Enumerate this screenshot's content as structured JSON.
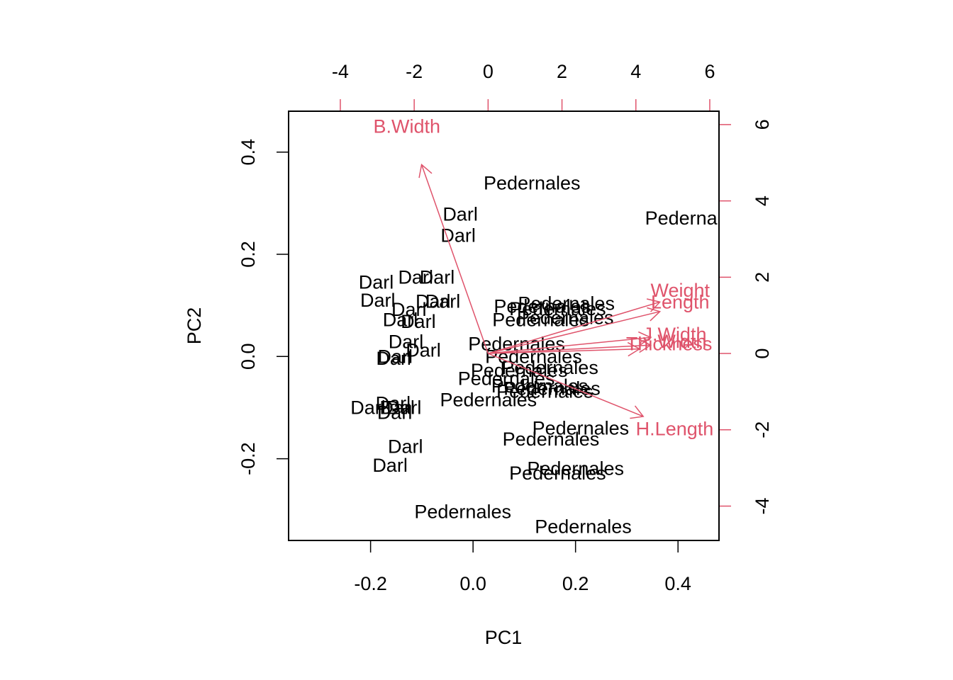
{
  "chart_data": {
    "type": "scatter",
    "subtype": "pca-biplot",
    "title": "",
    "xlabel": "PC1",
    "ylabel": "PC2",
    "xlim": [
      -0.36,
      0.48
    ],
    "ylim": [
      -0.36,
      0.48
    ],
    "xticks": [
      "-0.2",
      "0.0",
      "0.2",
      "0.4"
    ],
    "yticks": [
      "-0.2",
      "0.0",
      "0.2",
      "0.4"
    ],
    "xtick_values": [
      -0.2,
      0.0,
      0.2,
      0.4
    ],
    "ytick_values": [
      -0.2,
      0.0,
      0.2,
      0.4
    ],
    "top_axis": {
      "ticks": [
        "-4",
        "-2",
        "0",
        "2",
        "4",
        "6"
      ],
      "tick_values": [
        -4,
        -2,
        0,
        2,
        4,
        6
      ],
      "lim": [
        -5.4,
        6.25
      ]
    },
    "right_axis": {
      "ticks": [
        "-4",
        "-2",
        "0",
        "2",
        "4",
        "6"
      ],
      "tick_values": [
        -4,
        -2,
        0,
        2,
        4,
        6
      ],
      "lim": [
        -4.9,
        6.35
      ]
    },
    "grid": false,
    "colors": {
      "points": "#000000",
      "arrows": "#DF536B",
      "frame": "#000000"
    },
    "observations": [
      {
        "label": "Pedernales",
        "x": 0.115,
        "y": 0.339
      },
      {
        "label": "Darl",
        "x": -0.025,
        "y": 0.278
      },
      {
        "label": "Darl",
        "x": -0.029,
        "y": 0.237
      },
      {
        "label": "Pedernales",
        "x": 0.43,
        "y": 0.271
      },
      {
        "label": "Darl",
        "x": -0.112,
        "y": 0.155
      },
      {
        "label": "Darl",
        "x": -0.07,
        "y": 0.155
      },
      {
        "label": "Darl",
        "x": -0.189,
        "y": 0.145
      },
      {
        "label": "Darl",
        "x": -0.186,
        "y": 0.11
      },
      {
        "label": "Darl",
        "x": -0.078,
        "y": 0.108
      },
      {
        "label": "Darl",
        "x": -0.059,
        "y": 0.108
      },
      {
        "label": "Pedernales",
        "x": 0.182,
        "y": 0.104
      },
      {
        "label": "Pedernales",
        "x": 0.135,
        "y": 0.098
      },
      {
        "label": "Pedernales",
        "x": 0.165,
        "y": 0.093
      },
      {
        "label": "Darl",
        "x": -0.125,
        "y": 0.092
      },
      {
        "label": "Pedernales",
        "x": 0.18,
        "y": 0.076
      },
      {
        "label": "Pedernales",
        "x": 0.132,
        "y": 0.072
      },
      {
        "label": "Darl",
        "x": -0.142,
        "y": 0.072
      },
      {
        "label": "Darl",
        "x": -0.107,
        "y": 0.068
      },
      {
        "label": "Darl",
        "x": -0.131,
        "y": 0.029
      },
      {
        "label": "Pedernales",
        "x": 0.085,
        "y": 0.025
      },
      {
        "label": "Darl",
        "x": -0.097,
        "y": 0.012
      },
      {
        "label": "Darl",
        "x": -0.152,
        "y": 0.0
      },
      {
        "label": "Darl",
        "x": -0.155,
        "y": -0.004
      },
      {
        "label": "Pedernales",
        "x": 0.118,
        "y": 0.0
      },
      {
        "label": "Pedernales",
        "x": 0.15,
        "y": -0.022
      },
      {
        "label": "Pedernales",
        "x": 0.09,
        "y": -0.027
      },
      {
        "label": "Pedernales",
        "x": 0.065,
        "y": -0.043
      },
      {
        "label": "Pedernales",
        "x": 0.13,
        "y": -0.058
      },
      {
        "label": "Pedernales",
        "x": 0.154,
        "y": -0.063
      },
      {
        "label": "Pedernales",
        "x": 0.14,
        "y": -0.068
      },
      {
        "label": "Pedernales",
        "x": 0.03,
        "y": -0.085
      },
      {
        "label": "Darl",
        "x": -0.156,
        "y": -0.092
      },
      {
        "label": "Darl",
        "x": -0.148,
        "y": -0.1
      },
      {
        "label": "Darl",
        "x": -0.135,
        "y": -0.1
      },
      {
        "label": "Darl",
        "x": -0.205,
        "y": -0.1
      },
      {
        "label": "Darl",
        "x": -0.153,
        "y": -0.11
      },
      {
        "label": "Pedernales",
        "x": 0.21,
        "y": -0.14
      },
      {
        "label": "Pedernales",
        "x": 0.152,
        "y": -0.162
      },
      {
        "label": "Darl",
        "x": -0.132,
        "y": -0.176
      },
      {
        "label": "Darl",
        "x": -0.162,
        "y": -0.213
      },
      {
        "label": "Pedernales",
        "x": 0.2,
        "y": -0.219
      },
      {
        "label": "Pedernales",
        "x": 0.165,
        "y": -0.228
      },
      {
        "label": "Pedernales",
        "x": -0.02,
        "y": -0.304
      },
      {
        "label": "Pedernales",
        "x": 0.215,
        "y": -0.333
      }
    ],
    "loadings": [
      {
        "name": "B.Width",
        "x": -1.8,
        "y": 4.95,
        "label_x": -2.2,
        "label_y": 5.95
      },
      {
        "name": "Weight",
        "x": 4.65,
        "y": 1.35,
        "label_x": 5.2,
        "label_y": 1.65
      },
      {
        "name": "Length",
        "x": 4.65,
        "y": 1.1,
        "label_x": 5.2,
        "label_y": 1.35
      },
      {
        "name": "J.Width",
        "x": 4.4,
        "y": 0.42,
        "label_x": 5.05,
        "label_y": 0.5
      },
      {
        "name": "Width",
        "x": 4.4,
        "y": 0.22,
        "label_x": 5.25,
        "label_y": 0.32
      },
      {
        "name": "Thickness",
        "x": 4.1,
        "y": 0.12,
        "label_x": 4.9,
        "label_y": 0.25
      },
      {
        "name": "H.Length",
        "x": 4.2,
        "y": -1.65,
        "label_x": 5.05,
        "label_y": -1.98
      }
    ]
  }
}
